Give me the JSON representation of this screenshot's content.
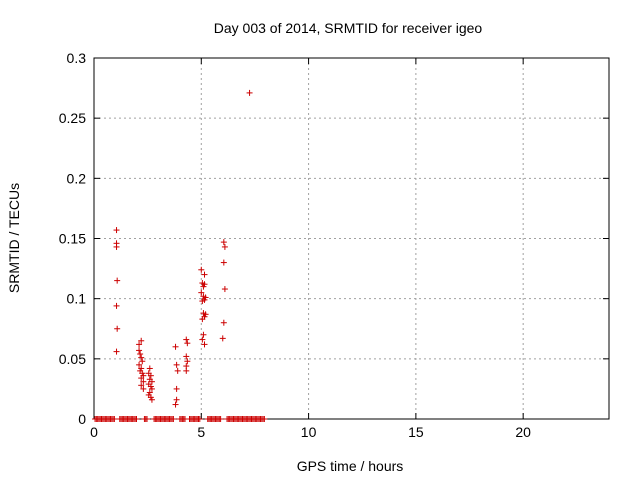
{
  "chart_data": {
    "type": "scatter",
    "title": "Day 003 of 2014, SRMTID for receiver igeo",
    "xlabel": "GPS time / hours",
    "ylabel": "SRMTID / TECUs",
    "xlim": [
      0,
      24
    ],
    "ylim": [
      0,
      0.3
    ],
    "x_ticks": [
      0,
      5,
      10,
      15,
      20
    ],
    "x_tick_labels": [
      "0",
      "5",
      "10",
      "15",
      "20"
    ],
    "y_ticks": [
      0,
      0.05,
      0.1,
      0.15,
      0.2,
      0.25,
      0.3
    ],
    "y_tick_labels": [
      "0",
      "0.05",
      "0.1",
      "0.15",
      "0.2",
      "0.25",
      "0.3"
    ],
    "grid": true,
    "marker": "+",
    "series": [
      {
        "name": "SRMTID",
        "color": "#cc0000",
        "points": [
          [
            1.05,
            0.157
          ],
          [
            1.05,
            0.146
          ],
          [
            1.05,
            0.143
          ],
          [
            1.08,
            0.115
          ],
          [
            1.05,
            0.094
          ],
          [
            1.08,
            0.075
          ],
          [
            1.05,
            0.056
          ],
          [
            2.1,
            0.062
          ],
          [
            2.2,
            0.065
          ],
          [
            2.1,
            0.057
          ],
          [
            2.15,
            0.054
          ],
          [
            2.2,
            0.051
          ],
          [
            2.25,
            0.048
          ],
          [
            2.1,
            0.045
          ],
          [
            2.2,
            0.042
          ],
          [
            2.15,
            0.04
          ],
          [
            2.25,
            0.038
          ],
          [
            2.3,
            0.036
          ],
          [
            2.2,
            0.034
          ],
          [
            2.3,
            0.031
          ],
          [
            2.2,
            0.028
          ],
          [
            2.3,
            0.025
          ],
          [
            2.6,
            0.042
          ],
          [
            2.55,
            0.038
          ],
          [
            2.65,
            0.036
          ],
          [
            2.6,
            0.033
          ],
          [
            2.7,
            0.031
          ],
          [
            2.55,
            0.029
          ],
          [
            2.65,
            0.027
          ],
          [
            2.7,
            0.025
          ],
          [
            2.6,
            0.022
          ],
          [
            2.55,
            0.02
          ],
          [
            2.65,
            0.018
          ],
          [
            2.7,
            0.016
          ],
          [
            3.8,
            0.06
          ],
          [
            3.85,
            0.045
          ],
          [
            3.9,
            0.04
          ],
          [
            3.85,
            0.025
          ],
          [
            3.85,
            0.016
          ],
          [
            3.8,
            0.012
          ],
          [
            4.3,
            0.066
          ],
          [
            4.35,
            0.063
          ],
          [
            4.3,
            0.052
          ],
          [
            4.35,
            0.048
          ],
          [
            4.3,
            0.044
          ],
          [
            4.3,
            0.04
          ],
          [
            5.0,
            0.124
          ],
          [
            5.15,
            0.12
          ],
          [
            5.05,
            0.113
          ],
          [
            5.1,
            0.11
          ],
          [
            5.15,
            0.112
          ],
          [
            5.0,
            0.105
          ],
          [
            5.1,
            0.102
          ],
          [
            5.15,
            0.099
          ],
          [
            5.05,
            0.098
          ],
          [
            5.2,
            0.101
          ],
          [
            5.1,
            0.088
          ],
          [
            5.15,
            0.085
          ],
          [
            5.05,
            0.083
          ],
          [
            5.2,
            0.087
          ],
          [
            5.1,
            0.07
          ],
          [
            5.05,
            0.066
          ],
          [
            5.15,
            0.062
          ],
          [
            6.05,
            0.147
          ],
          [
            6.1,
            0.143
          ],
          [
            6.05,
            0.13
          ],
          [
            6.1,
            0.108
          ],
          [
            6.05,
            0.08
          ],
          [
            6.0,
            0.067
          ],
          [
            7.25,
            0.271
          ]
        ],
        "baseline_points": {
          "description": "dense row of zero values",
          "x_ranges": [
            [
              0.05,
              0.95
            ],
            [
              1.2,
              2.0
            ],
            [
              2.35,
              2.5
            ],
            [
              2.8,
              3.75
            ],
            [
              4.0,
              4.25
            ],
            [
              4.45,
              4.95
            ],
            [
              5.3,
              5.95
            ],
            [
              6.2,
              7.95
            ]
          ],
          "y": 0,
          "step": 0.06
        }
      }
    ]
  }
}
